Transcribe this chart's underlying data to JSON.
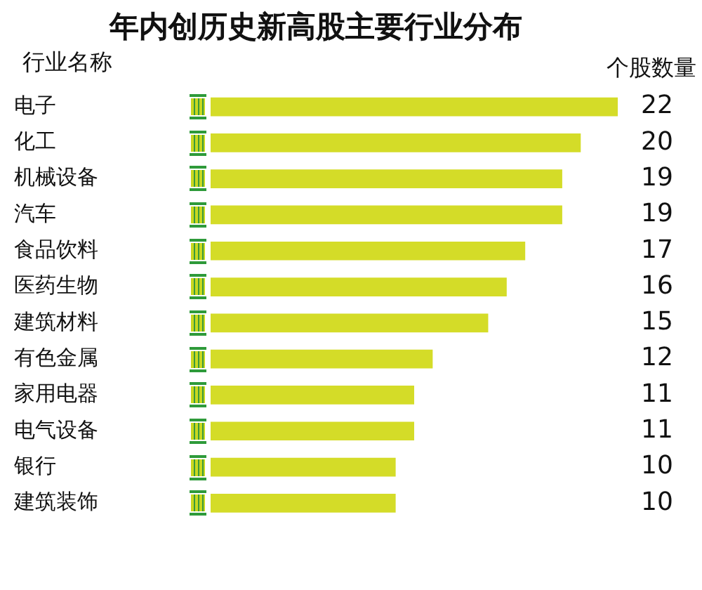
{
  "chart_data": {
    "type": "bar",
    "orientation": "horizontal",
    "title": "年内创历史新高股主要行业分布",
    "ylabel": "行业名称",
    "annotations": [
      "个股数量"
    ],
    "categories": [
      "电子",
      "化工",
      "机械设备",
      "汽车",
      "食品饮料",
      "医药生物",
      "建筑材料",
      "有色金属",
      "家用电器",
      "电气设备",
      "银行",
      "建筑装饰"
    ],
    "values": [
      22,
      20,
      19,
      19,
      17,
      16,
      15,
      12,
      11,
      11,
      10,
      10
    ],
    "color": "#d4dc28",
    "xlim": [
      0,
      22
    ],
    "tick_labels": "y",
    "legend": false,
    "data_labels": true
  }
}
